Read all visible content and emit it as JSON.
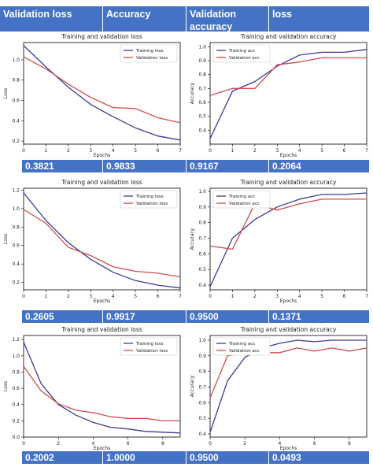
{
  "header": [
    "Validation loss",
    "Accuracy",
    "Validation accuracy",
    "loss"
  ],
  "results": [
    [
      "0.3821",
      "0.9833",
      "0.9167",
      "0.2064"
    ],
    [
      "0.2605",
      "0.9917",
      "0.9500",
      "0.1371"
    ],
    [
      "0.2002",
      "1.0000",
      "0.9500",
      "0.0493"
    ]
  ],
  "colors": {
    "train": "#3b3b98",
    "val": "#d24b4b",
    "table": "#4472c4"
  },
  "chart_data": [
    {
      "type": "line",
      "title": "Training and validation loss",
      "xlabel": "Epochs",
      "ylabel": "Loss",
      "xlim": [
        0,
        7
      ],
      "ylim": [
        0.17,
        1.17
      ],
      "xticks": [
        0,
        1,
        2,
        3,
        4,
        5,
        6,
        7
      ],
      "yticks": [
        0.2,
        0.4,
        0.6,
        0.8,
        1.0
      ],
      "legend": "top-right",
      "series": [
        {
          "name": "Training loss",
          "x": [
            0,
            1,
            2,
            3,
            4,
            5,
            6,
            7
          ],
          "y": [
            1.14,
            0.93,
            0.73,
            0.56,
            0.44,
            0.33,
            0.25,
            0.21
          ]
        },
        {
          "name": "Validation loss",
          "x": [
            0,
            1,
            2,
            3,
            4,
            5,
            6,
            7
          ],
          "y": [
            1.03,
            0.91,
            0.76,
            0.63,
            0.53,
            0.52,
            0.43,
            0.38
          ]
        }
      ]
    },
    {
      "type": "line",
      "title": "Training and validation accuracy",
      "xlabel": "Epochs",
      "ylabel": "Accuracy",
      "xlim": [
        0,
        7
      ],
      "ylim": [
        0.3,
        1.03
      ],
      "xticks": [
        0,
        1,
        2,
        3,
        4,
        5,
        6,
        7
      ],
      "yticks": [
        0.4,
        0.5,
        0.6,
        0.7,
        0.8,
        0.9,
        1.0
      ],
      "legend": "top-left",
      "series": [
        {
          "name": "Training acc",
          "x": [
            0,
            1,
            2,
            3,
            4,
            5,
            6,
            7
          ],
          "y": [
            0.34,
            0.68,
            0.75,
            0.86,
            0.94,
            0.96,
            0.96,
            0.98
          ]
        },
        {
          "name": "Validation acc",
          "x": [
            0,
            1,
            2,
            3,
            4,
            5,
            6,
            7
          ],
          "y": [
            0.65,
            0.7,
            0.7,
            0.87,
            0.89,
            0.92,
            0.92,
            0.92
          ]
        }
      ]
    },
    {
      "type": "line",
      "title": "Training and validation loss",
      "xlabel": "Epochs",
      "ylabel": "Loss",
      "xlim": [
        0,
        7
      ],
      "ylim": [
        0.12,
        1.22
      ],
      "xticks": [
        0,
        1,
        2,
        3,
        4,
        5,
        6,
        7
      ],
      "yticks": [
        0.2,
        0.4,
        0.6,
        0.8,
        1.0,
        1.2
      ],
      "legend": "top-right",
      "series": [
        {
          "name": "Training loss",
          "x": [
            0,
            1,
            2,
            3,
            4,
            5,
            6,
            7
          ],
          "y": [
            1.17,
            0.87,
            0.63,
            0.45,
            0.31,
            0.22,
            0.17,
            0.14
          ]
        },
        {
          "name": "Validation loss",
          "x": [
            0,
            1,
            2,
            3,
            4,
            5,
            6,
            7
          ],
          "y": [
            0.99,
            0.84,
            0.58,
            0.49,
            0.37,
            0.32,
            0.3,
            0.26
          ]
        }
      ]
    },
    {
      "type": "line",
      "title": "Training and validation accuracy",
      "xlabel": "Epochs",
      "ylabel": "Accuracy",
      "xlim": [
        0,
        7
      ],
      "ylim": [
        0.37,
        1.02
      ],
      "xticks": [
        0,
        1,
        2,
        3,
        4,
        5,
        6,
        7
      ],
      "yticks": [
        0.4,
        0.5,
        0.6,
        0.7,
        0.8,
        0.9,
        1.0
      ],
      "legend": "top-left",
      "series": [
        {
          "name": "Training acc",
          "x": [
            0,
            1,
            2,
            3,
            4,
            5,
            6,
            7
          ],
          "y": [
            0.39,
            0.7,
            0.82,
            0.9,
            0.95,
            0.98,
            0.98,
            0.99
          ]
        },
        {
          "name": "Validation acc",
          "x": [
            0,
            1,
            2,
            3,
            4,
            5,
            6,
            7
          ],
          "y": [
            0.65,
            0.63,
            0.92,
            0.88,
            0.92,
            0.95,
            0.95,
            0.95
          ]
        }
      ]
    },
    {
      "type": "line",
      "title": "Training and validation loss",
      "xlabel": "Epochs",
      "ylabel": "Loss",
      "xlim": [
        0,
        9
      ],
      "ylim": [
        0.0,
        1.25
      ],
      "xticks": [
        0,
        2,
        4,
        6,
        8
      ],
      "yticks": [
        0.0,
        0.2,
        0.4,
        0.6,
        0.8,
        1.0,
        1.2
      ],
      "legend": "top-right",
      "series": [
        {
          "name": "Training loss",
          "x": [
            0,
            1,
            2,
            3,
            4,
            5,
            6,
            7,
            8,
            9
          ],
          "y": [
            1.17,
            0.66,
            0.4,
            0.27,
            0.18,
            0.12,
            0.1,
            0.07,
            0.06,
            0.05
          ]
        },
        {
          "name": "Validation loss",
          "x": [
            0,
            1,
            2,
            3,
            4,
            5,
            6,
            7,
            8,
            9
          ],
          "y": [
            0.87,
            0.57,
            0.41,
            0.33,
            0.3,
            0.25,
            0.23,
            0.23,
            0.2,
            0.2
          ]
        }
      ]
    },
    {
      "type": "line",
      "title": "Training and validation accuracy",
      "xlabel": "Epochs",
      "ylabel": "Accuracy",
      "xlim": [
        0,
        9
      ],
      "ylim": [
        0.38,
        1.03
      ],
      "xticks": [
        0,
        2,
        4,
        6,
        8
      ],
      "yticks": [
        0.4,
        0.5,
        0.6,
        0.7,
        0.8,
        0.9,
        1.0
      ],
      "legend": "top-left",
      "series": [
        {
          "name": "Training acc",
          "x": [
            0,
            1,
            2,
            3,
            4,
            5,
            6,
            7,
            8,
            9
          ],
          "y": [
            0.41,
            0.74,
            0.89,
            0.95,
            0.98,
            1.0,
            0.99,
            1.0,
            1.0,
            1.0
          ]
        },
        {
          "name": "Validation acc",
          "x": [
            0,
            1,
            2,
            3,
            4,
            5,
            6,
            7,
            8,
            9
          ],
          "y": [
            0.63,
            0.9,
            0.92,
            0.92,
            0.92,
            0.95,
            0.93,
            0.95,
            0.93,
            0.95
          ]
        }
      ]
    }
  ]
}
